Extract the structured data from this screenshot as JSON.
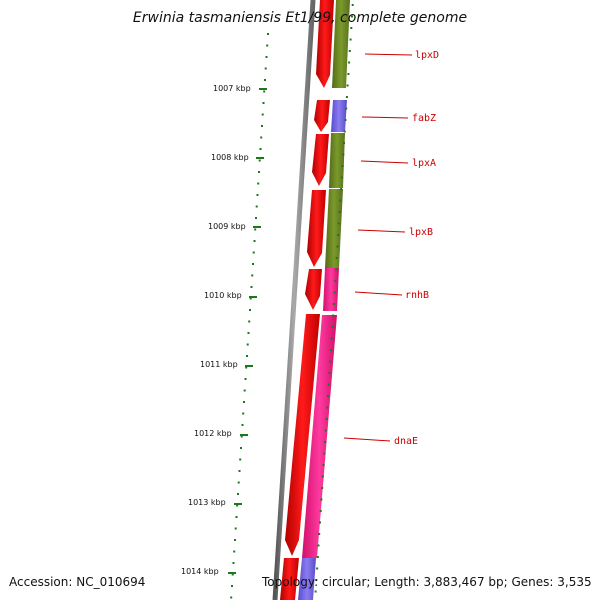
{
  "title": "Erwinia tasmaniensis Et1/99, complete genome",
  "accession": "Accession: NC_010694",
  "summary": "Topology: circular; Length: 3,883,467 bp; Genes: 3,535",
  "scale_labels": [
    "1007 kbp",
    "1008 kbp",
    "1009 kbp",
    "1010 kbp",
    "1011 kbp",
    "1012 kbp",
    "1013 kbp",
    "1014 kbp"
  ],
  "gene_labels": [
    "lpxD",
    "fabZ",
    "lpxA",
    "lpxB",
    "rnhB",
    "dnaE"
  ],
  "colors": {
    "forward_cds": "#ff0000",
    "olive_feature": "#6b8e23",
    "purple_feature": "#7b68ee",
    "magenta_feature": "#ff1493",
    "label_red": "#cc0000",
    "tick_green": "#1a7a1a"
  }
}
